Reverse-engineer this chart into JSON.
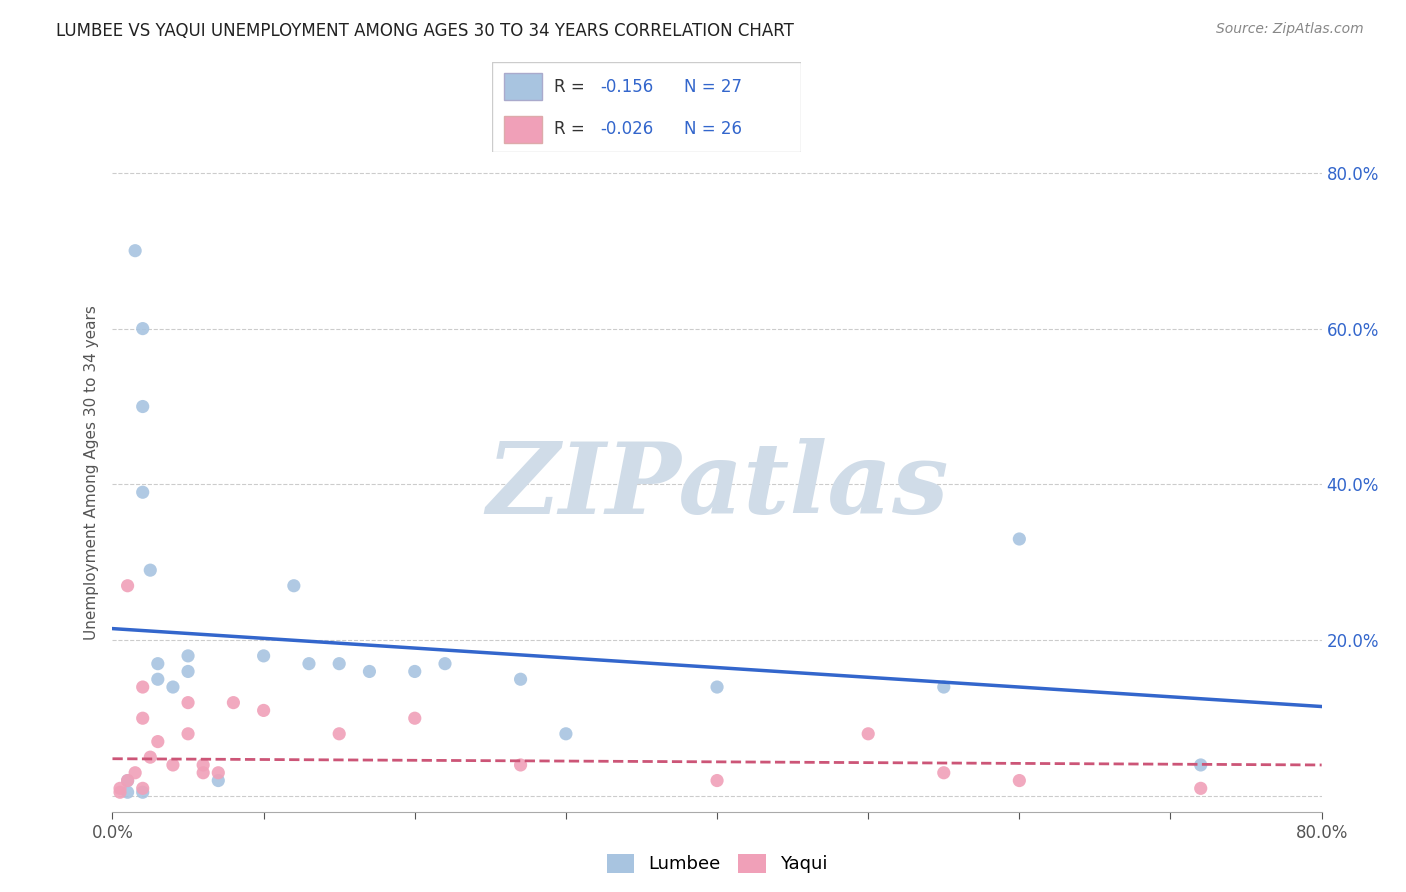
{
  "title": "LUMBEE VS YAQUI UNEMPLOYMENT AMONG AGES 30 TO 34 YEARS CORRELATION CHART",
  "source": "Source: ZipAtlas.com",
  "ylabel": "Unemployment Among Ages 30 to 34 years",
  "xlim": [
    0.0,
    0.8
  ],
  "ylim": [
    -0.02,
    0.85
  ],
  "xticks": [
    0.0,
    0.1,
    0.2,
    0.3,
    0.4,
    0.5,
    0.6,
    0.7,
    0.8
  ],
  "yticks": [
    0.0,
    0.2,
    0.4,
    0.6,
    0.8
  ],
  "grid_yticks": [
    0.0,
    0.2,
    0.4,
    0.6,
    0.8
  ],
  "lumbee_R": -0.156,
  "lumbee_N": 27,
  "yaqui_R": -0.026,
  "yaqui_N": 26,
  "lumbee_color": "#a8c4e0",
  "lumbee_line_color": "#3366cc",
  "yaqui_color": "#f0a0b8",
  "yaqui_line_color": "#cc5577",
  "lumbee_x": [
    0.01,
    0.01,
    0.015,
    0.02,
    0.02,
    0.02,
    0.02,
    0.025,
    0.03,
    0.03,
    0.04,
    0.05,
    0.05,
    0.07,
    0.1,
    0.12,
    0.13,
    0.15,
    0.17,
    0.2,
    0.22,
    0.27,
    0.3,
    0.4,
    0.55,
    0.6,
    0.72
  ],
  "lumbee_y": [
    0.005,
    0.02,
    0.7,
    0.6,
    0.5,
    0.39,
    0.005,
    0.29,
    0.17,
    0.15,
    0.14,
    0.16,
    0.18,
    0.02,
    0.18,
    0.27,
    0.17,
    0.17,
    0.16,
    0.16,
    0.17,
    0.15,
    0.08,
    0.14,
    0.14,
    0.33,
    0.04
  ],
  "yaqui_x": [
    0.005,
    0.005,
    0.01,
    0.01,
    0.015,
    0.02,
    0.02,
    0.02,
    0.025,
    0.03,
    0.04,
    0.05,
    0.05,
    0.06,
    0.06,
    0.07,
    0.08,
    0.1,
    0.15,
    0.2,
    0.27,
    0.4,
    0.5,
    0.55,
    0.6,
    0.72
  ],
  "yaqui_y": [
    0.005,
    0.01,
    0.27,
    0.02,
    0.03,
    0.01,
    0.1,
    0.14,
    0.05,
    0.07,
    0.04,
    0.08,
    0.12,
    0.03,
    0.04,
    0.03,
    0.12,
    0.11,
    0.08,
    0.1,
    0.04,
    0.02,
    0.08,
    0.03,
    0.02,
    0.01
  ],
  "marker_size": 90,
  "background_color": "#ffffff",
  "watermark_color": "#d0dce8",
  "lumbee_trend_y_start": 0.215,
  "lumbee_trend_y_end": 0.115,
  "yaqui_trend_y_start": 0.048,
  "yaqui_trend_y_end": 0.04,
  "legend_text_color": "#3366cc",
  "legend_label_color": "#333333"
}
